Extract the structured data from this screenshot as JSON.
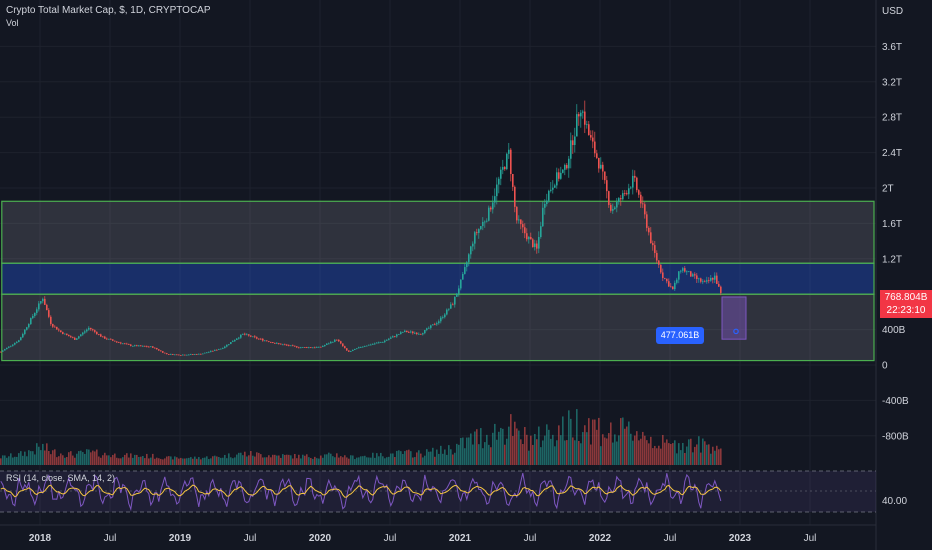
{
  "header": {
    "title": "Crypto Total Market Cap, $, 1D, CRYPTOCAP",
    "volume_label": "Vol"
  },
  "axis": {
    "currency_label": "USD"
  },
  "price_tag": {
    "value": "768.804B",
    "countdown": "22:23:10"
  },
  "measure_tag": {
    "value": "477.061B"
  },
  "rsi": {
    "label": "RSI (14, close, SMA, 14, 2)",
    "level_label": "40.00"
  },
  "colors": {
    "background": "#131722",
    "up": "#26a69a",
    "down": "#ef5350",
    "zone_border": "#4caf50",
    "band_fill": "#2962ff",
    "rsi_line": "#7e57c2",
    "rsi_ma": "#f5c542",
    "price_tag_bg": "#f23645"
  },
  "chart_data": {
    "type": "candlestick",
    "title": "Crypto Total Market Cap, $, 1D, CRYPTOCAP",
    "y_unit": "USD",
    "y_ticks": [
      "3.6T",
      "3.2T",
      "2.8T",
      "2.4T",
      "2T",
      "1.6T",
      "1.2T",
      "800B",
      "400B",
      "0",
      "-400B",
      "-800B"
    ],
    "y_tick_values": [
      3600,
      3200,
      2800,
      2400,
      2000,
      1600,
      1200,
      800,
      400,
      0,
      -400,
      -800
    ],
    "x_ticks": [
      "2018",
      "Jul",
      "2019",
      "Jul",
      "2020",
      "Jul",
      "2021",
      "Jul",
      "2022",
      "Jul",
      "2023",
      "Jul"
    ],
    "x_tick_values": [
      2018.0,
      2018.5,
      2019.0,
      2019.5,
      2020.0,
      2020.5,
      2021.0,
      2021.5,
      2022.0,
      2022.5,
      2023.0,
      2023.5
    ],
    "price_series": [
      {
        "t": 2017.72,
        "v": 150
      },
      {
        "t": 2017.85,
        "v": 280
      },
      {
        "t": 2017.95,
        "v": 560
      },
      {
        "t": 2018.02,
        "v": 760
      },
      {
        "t": 2018.08,
        "v": 460
      },
      {
        "t": 2018.15,
        "v": 370
      },
      {
        "t": 2018.25,
        "v": 290
      },
      {
        "t": 2018.35,
        "v": 420
      },
      {
        "t": 2018.45,
        "v": 310
      },
      {
        "t": 2018.55,
        "v": 260
      },
      {
        "t": 2018.65,
        "v": 220
      },
      {
        "t": 2018.8,
        "v": 205
      },
      {
        "t": 2018.9,
        "v": 125
      },
      {
        "t": 2019.0,
        "v": 115
      },
      {
        "t": 2019.15,
        "v": 125
      },
      {
        "t": 2019.3,
        "v": 190
      },
      {
        "t": 2019.45,
        "v": 350
      },
      {
        "t": 2019.55,
        "v": 300
      },
      {
        "t": 2019.7,
        "v": 240
      },
      {
        "t": 2019.85,
        "v": 200
      },
      {
        "t": 2020.0,
        "v": 200
      },
      {
        "t": 2020.12,
        "v": 290
      },
      {
        "t": 2020.2,
        "v": 145
      },
      {
        "t": 2020.3,
        "v": 210
      },
      {
        "t": 2020.45,
        "v": 265
      },
      {
        "t": 2020.6,
        "v": 380
      },
      {
        "t": 2020.72,
        "v": 355
      },
      {
        "t": 2020.85,
        "v": 500
      },
      {
        "t": 2020.95,
        "v": 700
      },
      {
        "t": 2021.02,
        "v": 1000
      },
      {
        "t": 2021.1,
        "v": 1450
      },
      {
        "t": 2021.2,
        "v": 1700
      },
      {
        "t": 2021.28,
        "v": 2100
      },
      {
        "t": 2021.35,
        "v": 2400
      },
      {
        "t": 2021.4,
        "v": 1650
      },
      {
        "t": 2021.48,
        "v": 1450
      },
      {
        "t": 2021.55,
        "v": 1300
      },
      {
        "t": 2021.6,
        "v": 1850
      },
      {
        "t": 2021.68,
        "v": 2100
      },
      {
        "t": 2021.75,
        "v": 2200
      },
      {
        "t": 2021.82,
        "v": 2650
      },
      {
        "t": 2021.86,
        "v": 2950
      },
      {
        "t": 2021.92,
        "v": 2600
      },
      {
        "t": 2022.0,
        "v": 2250
      },
      {
        "t": 2022.08,
        "v": 1750
      },
      {
        "t": 2022.16,
        "v": 1900
      },
      {
        "t": 2022.24,
        "v": 2100
      },
      {
        "t": 2022.3,
        "v": 1800
      },
      {
        "t": 2022.38,
        "v": 1300
      },
      {
        "t": 2022.45,
        "v": 1000
      },
      {
        "t": 2022.52,
        "v": 850
      },
      {
        "t": 2022.58,
        "v": 1100
      },
      {
        "t": 2022.66,
        "v": 1000
      },
      {
        "t": 2022.75,
        "v": 920
      },
      {
        "t": 2022.82,
        "v": 1000
      },
      {
        "t": 2022.87,
        "v": 768.804
      }
    ],
    "zones": [
      {
        "from": 1850,
        "to": 1150,
        "style": "outlined"
      },
      {
        "from": 1150,
        "to": 800,
        "style": "blue-band"
      },
      {
        "from": 800,
        "to": 50,
        "style": "outlined"
      }
    ],
    "last_price": "768.804B",
    "measure_value": "477.061B",
    "rsi": {
      "label": "RSI (14, close, SMA, 14, 2)",
      "level": 40
    }
  }
}
